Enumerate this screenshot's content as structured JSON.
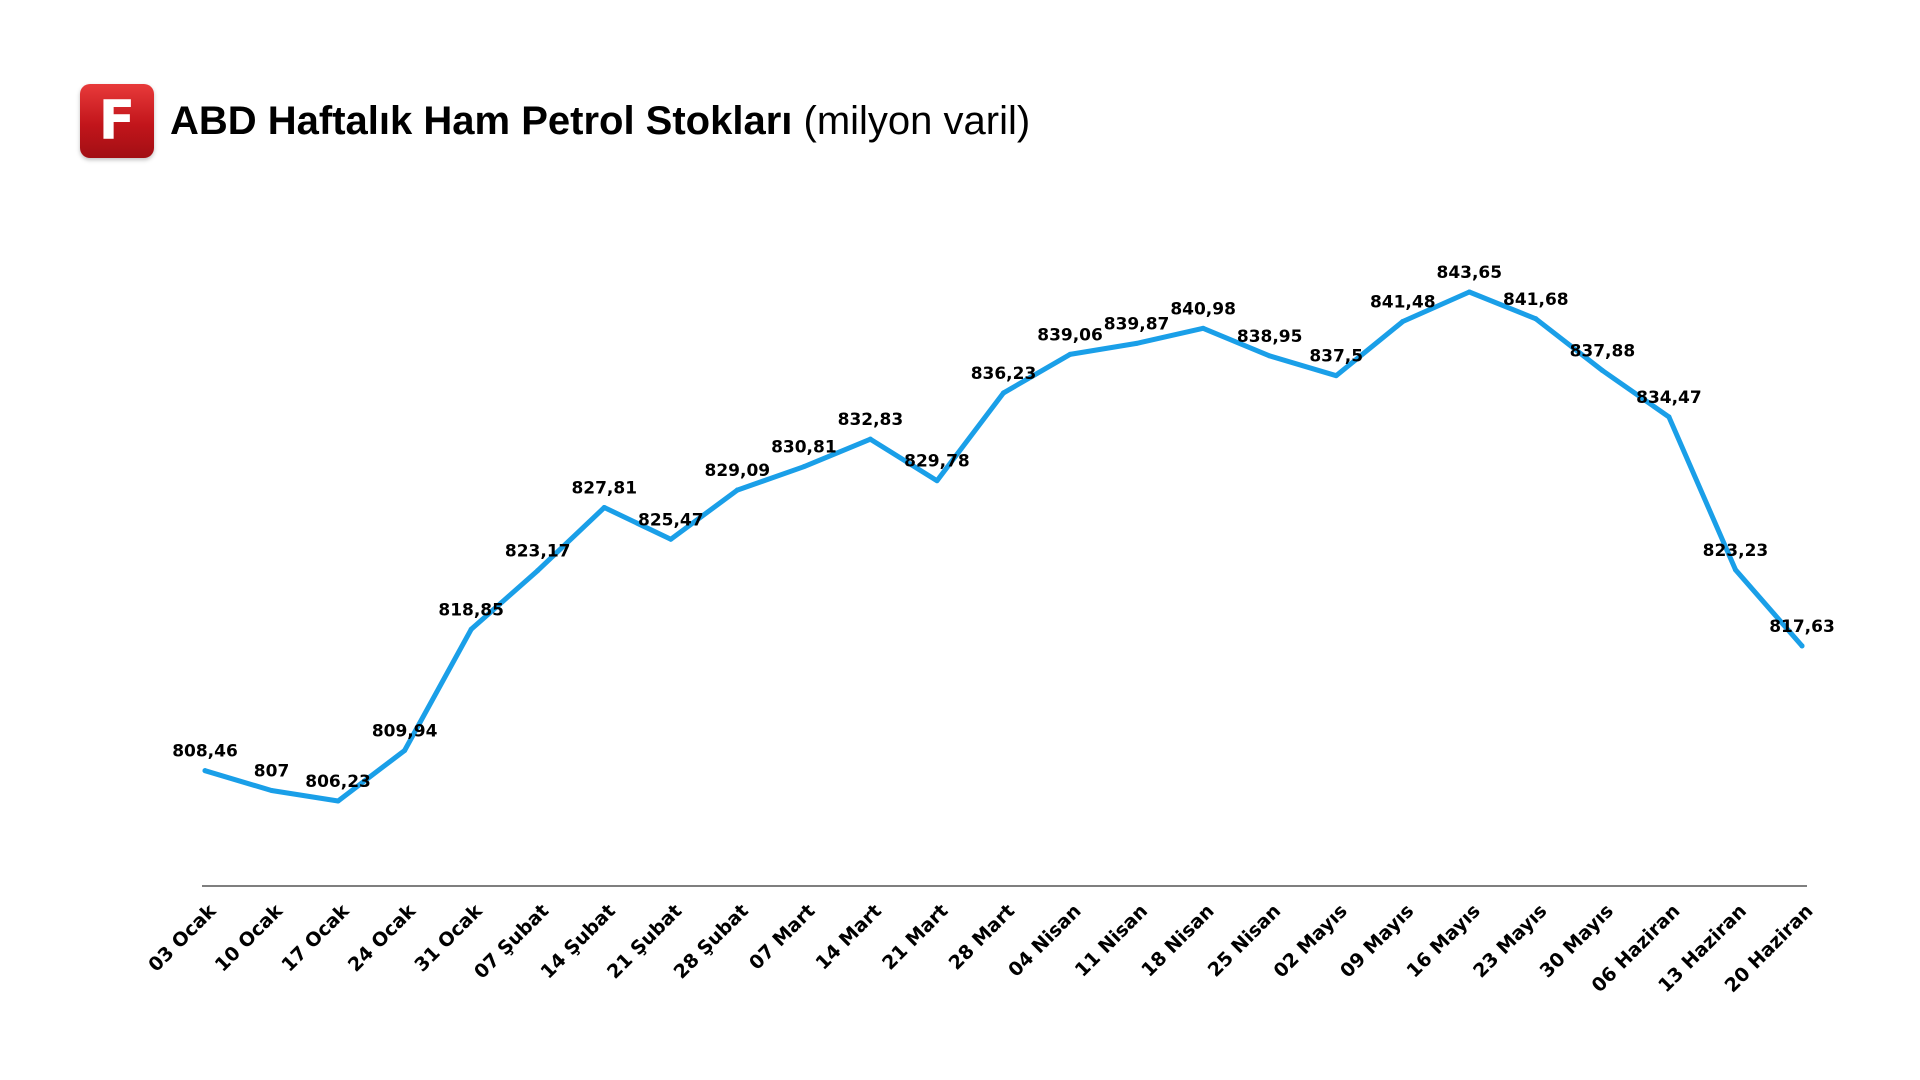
{
  "header": {
    "logo_letter": "F",
    "title_bold": "ABD Haftalık Ham Petrol Stokları",
    "title_unit": "(milyon varil)"
  },
  "colors": {
    "line": "#1a9fe8",
    "axis": "#555555",
    "logo": "#d11e24"
  },
  "chart_data": {
    "type": "line",
    "title": "ABD Haftalık Ham Petrol Stokları (milyon varil)",
    "categories": [
      "03 Ocak",
      "10 Ocak",
      "17 Ocak",
      "24 Ocak",
      "31 Ocak",
      "07 Şubat",
      "14 Şubat",
      "21 Şubat",
      "28 Şubat",
      "07 Mart",
      "14 Mart",
      "21 Mart",
      "28 Mart",
      "04 Nisan",
      "11 Nisan",
      "18 Nisan",
      "25 Nisan",
      "02 Mayıs",
      "09 Mayıs",
      "16 Mayıs",
      "23 Mayıs",
      "30 Mayıs",
      "06 Haziran",
      "13 Haziran",
      "20 Haziran"
    ],
    "values": [
      808.46,
      807,
      806.23,
      809.94,
      818.85,
      823.17,
      827.81,
      825.47,
      829.09,
      830.81,
      832.83,
      829.78,
      836.23,
      839.06,
      839.87,
      840.98,
      838.95,
      837.5,
      841.48,
      843.65,
      841.68,
      837.88,
      834.47,
      823.23,
      817.63
    ],
    "data_labels": [
      "808,46",
      "807",
      "806,23",
      "809,94",
      "818,85",
      "823,17",
      "827,81",
      "825,47",
      "829,09",
      "830,81",
      "832,83",
      "829,78",
      "836,23",
      "839,06",
      "839,87",
      "840,98",
      "838,95",
      "837,5",
      "841,48",
      "843,65",
      "841,68",
      "837,88",
      "834,47",
      "823,23",
      "817,63"
    ],
    "grid": false,
    "legend": "none"
  }
}
